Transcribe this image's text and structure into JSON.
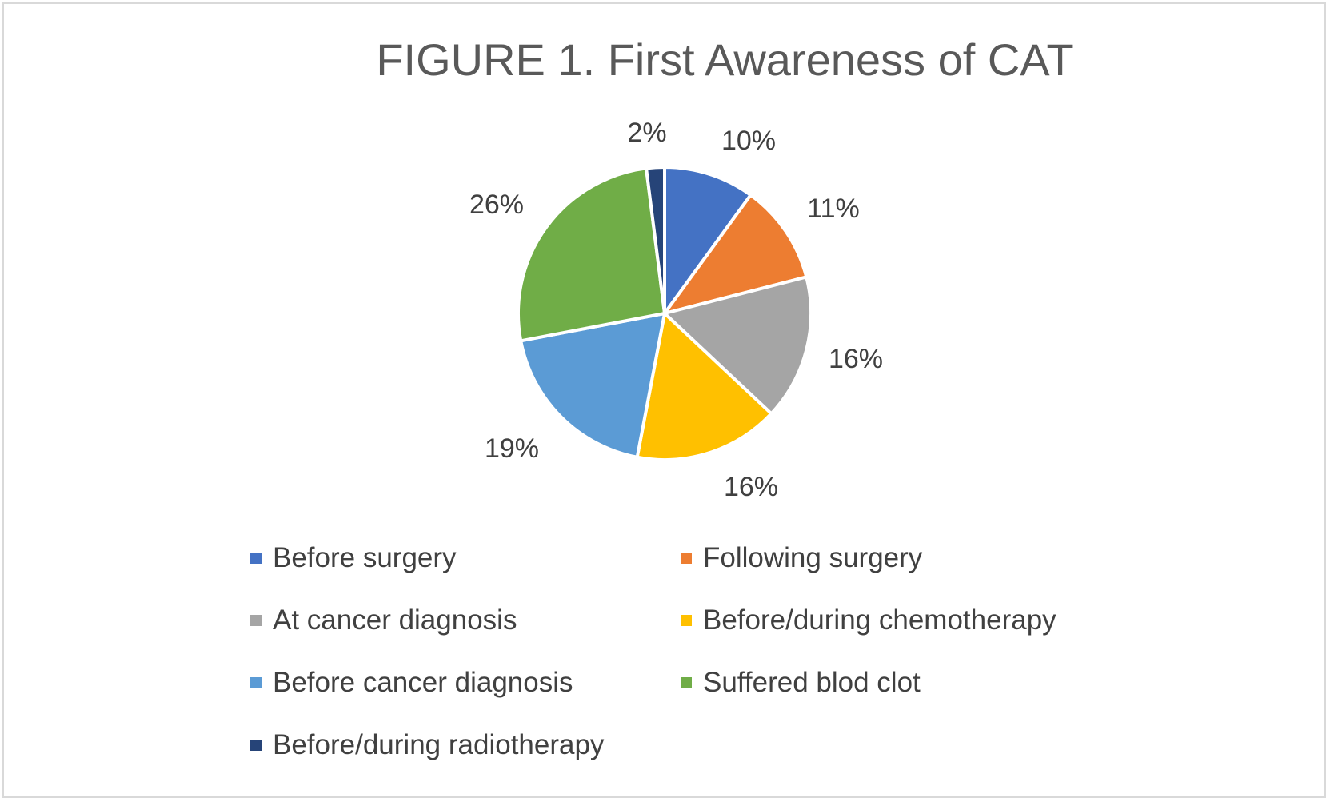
{
  "chart_data": {
    "type": "pie",
    "title": "FIGURE 1. First Awareness of CAT",
    "series": [
      {
        "name": "Before surgery",
        "value": 10,
        "label": "10%",
        "color": "#4472c4"
      },
      {
        "name": "Following surgery",
        "value": 11,
        "label": "11%",
        "color": "#ed7d31"
      },
      {
        "name": "At cancer diagnosis",
        "value": 16,
        "label": "16%",
        "color": "#a5a5a5"
      },
      {
        "name": "Before/during chemotherapy",
        "value": 16,
        "label": "16%",
        "color": "#ffc000"
      },
      {
        "name": "Before cancer diagnosis",
        "value": 19,
        "label": "19%",
        "color": "#5b9bd5"
      },
      {
        "name": "Suffered blod clot",
        "value": 26,
        "label": "26%",
        "color": "#70ad47"
      },
      {
        "name": "Before/during radiotherapy",
        "value": 2,
        "label": "2%",
        "color": "#264478"
      }
    ],
    "legend_position": "bottom"
  }
}
